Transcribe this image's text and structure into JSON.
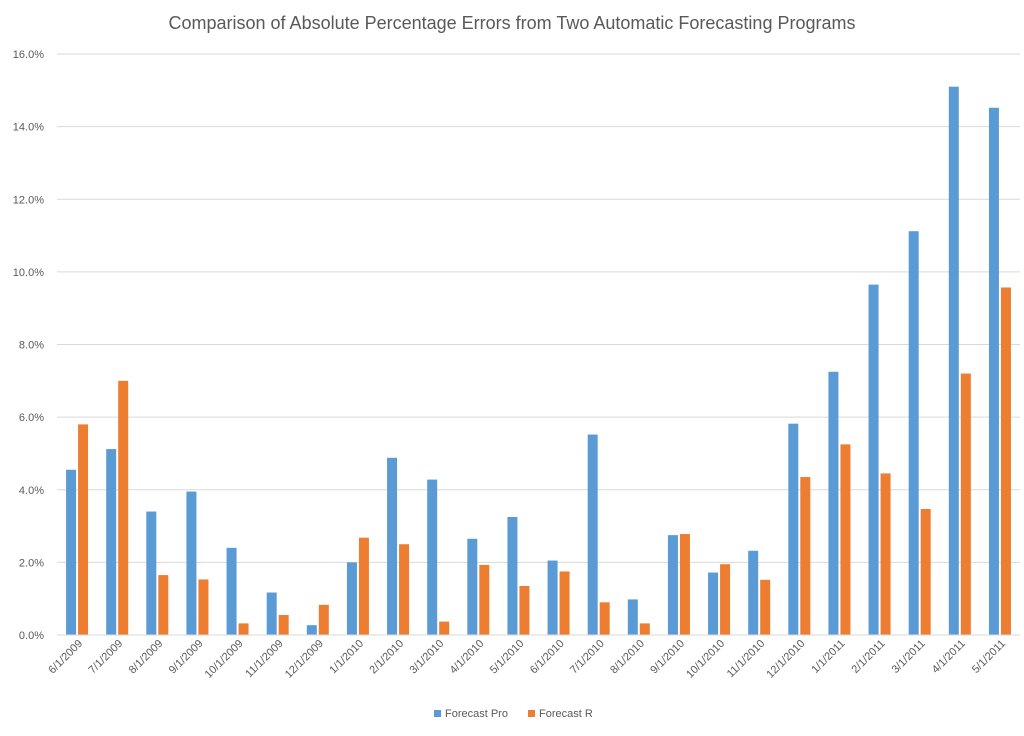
{
  "chart_data": {
    "type": "bar",
    "title": "Comparison of Absolute Percentage Errors from Two Automatic Forecasting Programs",
    "xlabel": "",
    "ylabel": "",
    "ylim": [
      0,
      16
    ],
    "yticks": [
      "0.0%",
      "2.0%",
      "4.0%",
      "6.0%",
      "8.0%",
      "10.0%",
      "12.0%",
      "14.0%",
      "16.0%"
    ],
    "grid": true,
    "legend_position": "bottom",
    "categories": [
      "6/1/2009",
      "7/1/2009",
      "8/1/2009",
      "9/1/2009",
      "10/1/2009",
      "11/1/2009",
      "12/1/2009",
      "1/1/2010",
      "2/1/2010",
      "3/1/2010",
      "4/1/2010",
      "5/1/2010",
      "6/1/2010",
      "7/1/2010",
      "8/1/2010",
      "9/1/2010",
      "10/1/2010",
      "11/1/2010",
      "12/1/2010",
      "1/1/2011",
      "2/1/2011",
      "3/1/2011",
      "4/1/2011",
      "5/1/2011"
    ],
    "series": [
      {
        "name": "Forecast Pro",
        "color": "#5B9BD5",
        "values": [
          4.55,
          5.12,
          3.4,
          3.95,
          2.4,
          1.17,
          0.27,
          2.0,
          4.88,
          4.28,
          2.65,
          3.25,
          2.05,
          5.52,
          0.98,
          2.75,
          1.72,
          2.32,
          5.82,
          7.25,
          9.65,
          11.12,
          15.1,
          14.52
        ]
      },
      {
        "name": "Forecast R",
        "color": "#ED7D31",
        "values": [
          5.8,
          7.0,
          1.65,
          1.53,
          0.32,
          0.55,
          0.83,
          2.68,
          2.5,
          0.37,
          1.93,
          1.35,
          1.75,
          0.9,
          0.32,
          2.78,
          1.95,
          1.52,
          4.35,
          5.25,
          4.45,
          3.47,
          7.2,
          9.57
        ]
      }
    ]
  }
}
